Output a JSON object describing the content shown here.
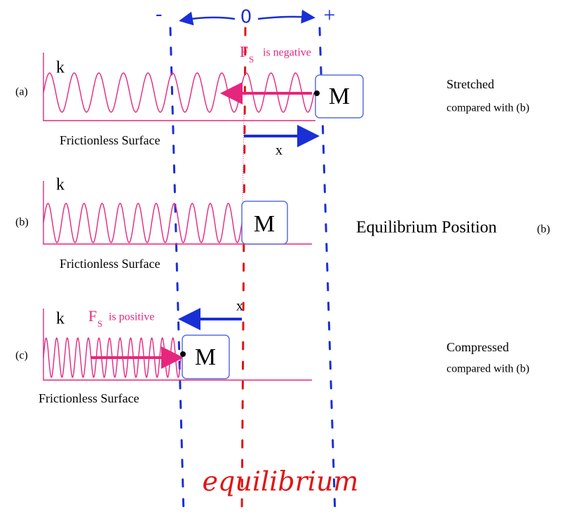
{
  "annotations": {
    "minus": "-",
    "zero": "0",
    "plus": "+",
    "equilibrium": "equilibrium"
  },
  "panels": [
    {
      "label": "(a)",
      "spring": "k",
      "mass": "M",
      "surface": "Frictionless Surface",
      "force": {
        "symbol": "F",
        "subscript": "S",
        "text": "is negative"
      },
      "displacement": "x",
      "description": [
        "Stretched",
        "compared with (b)"
      ]
    },
    {
      "label": "(b)",
      "spring": "k",
      "mass": "M",
      "surface": "Frictionless Surface",
      "description": [
        "Equilibrium Position",
        "(b)"
      ]
    },
    {
      "label": "(c)",
      "spring": "k",
      "mass": "M",
      "surface": "Frictionless Surface",
      "force": {
        "symbol": "F",
        "subscript": "S",
        "text": "is positive"
      },
      "displacement": "x",
      "description": [
        "Compressed",
        "compared with (b)"
      ]
    }
  ]
}
